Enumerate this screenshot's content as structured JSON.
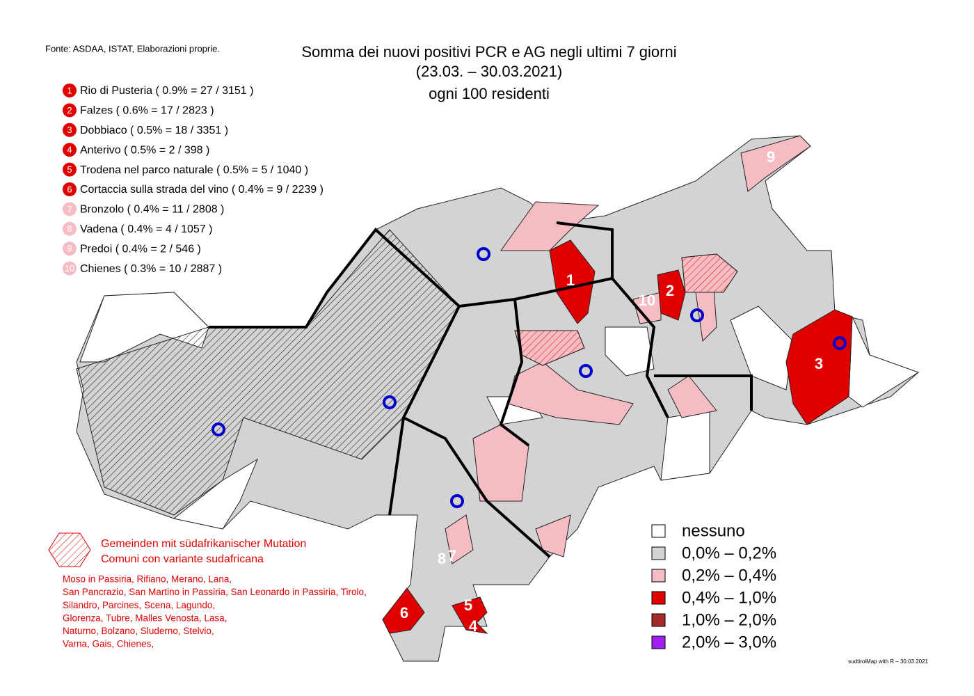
{
  "source": "Fonte: ASDAA, ISTAT, Elaborazioni proprie.",
  "title": [
    "Somma dei nuovi positivi PCR e AG negli ultimi 7 giorni",
    "(23.03. – 30.03.2021)",
    "ogni 100 residenti"
  ],
  "ranking": [
    {
      "rank": "1",
      "text": "Rio di Pusteria ( 0.9% = 27 / 3151 )",
      "color": "#e00000"
    },
    {
      "rank": "2",
      "text": "Falzes ( 0.6% = 17 / 2823 )",
      "color": "#e00000"
    },
    {
      "rank": "3",
      "text": "Dobbiaco ( 0.5% = 18 / 3351 )",
      "color": "#e00000"
    },
    {
      "rank": "4",
      "text": "Anterivo ( 0.5% = 2 / 398 )",
      "color": "#e00000"
    },
    {
      "rank": "5",
      "text": "Trodena nel parco naturale ( 0.5% = 5 / 1040 )",
      "color": "#e00000"
    },
    {
      "rank": "6",
      "text": "Cortaccia sulla strada del vino ( 0.4% = 9 / 2239 )",
      "color": "#e00000"
    },
    {
      "rank": "7",
      "text": "Bronzolo ( 0.4% = 11 / 2808 )",
      "color": "#f6bcc4"
    },
    {
      "rank": "8",
      "text": "Vadena ( 0.4% = 4 / 1057 )",
      "color": "#f6bcc4"
    },
    {
      "rank": "9",
      "text": "Predoi ( 0.4% = 2 / 546 )",
      "color": "#f6bcc4"
    },
    {
      "rank": "10",
      "text": "Chienes ( 0.3% = 10 / 2887 )",
      "color": "#f6bcc4"
    }
  ],
  "legend": [
    {
      "label": "nessuno",
      "color": "#ffffff"
    },
    {
      "label": "0,0% – 0,2%",
      "color": "#d3d3d3"
    },
    {
      "label": "0,2% – 0,4%",
      "color": "#f6bcc4"
    },
    {
      "label": "0,4% – 1,0%",
      "color": "#e00000"
    },
    {
      "label": "1,0% – 2,0%",
      "color": "#a52a2a"
    },
    {
      "label": "2,0% – 3,0%",
      "color": "#a020f0"
    }
  ],
  "variant": {
    "title": [
      "Gemeinden mit südafrikanischer Mutation",
      "Comuni con variante sudafricana"
    ],
    "lines": [
      "Moso in Passiria,  Rifiano,  Merano,  Lana,",
      "San Pancrazio,  San Martino in Passiria,  San Leonardo in Passiria,  Tirolo,",
      "Silandro,  Parcines,  Scena,  Lagundo,",
      "Glorenza,  Tubre,  Malles Venosta,  Lasa,",
      "Naturno,  Bolzano,  Sluderno,  Stelvio,",
      "Varna,  Gais,  Chienes,"
    ]
  },
  "credit": "sudtirolMap with R – 30.03.2021"
}
